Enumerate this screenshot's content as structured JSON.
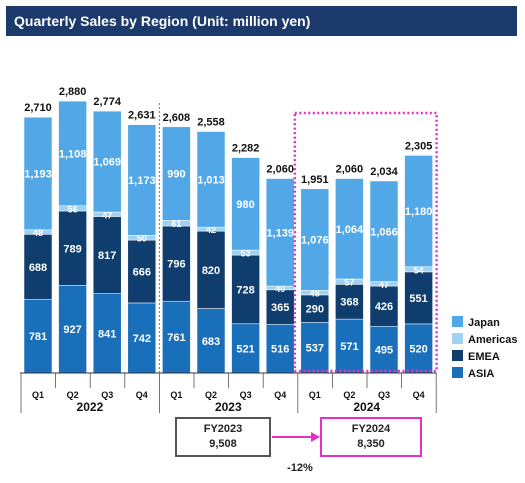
{
  "title": "Quarterly Sales by Region (Unit: million yen)",
  "chart_data": {
    "type": "bar",
    "stacked": true,
    "categories": [
      "Q1",
      "Q2",
      "Q3",
      "Q4",
      "Q1",
      "Q2",
      "Q3",
      "Q4",
      "Q1",
      "Q2",
      "Q3",
      "Q4"
    ],
    "year_groups": [
      {
        "label": "2022",
        "from": 0,
        "to": 3
      },
      {
        "label": "2023",
        "from": 4,
        "to": 7
      },
      {
        "label": "2024",
        "from": 8,
        "to": 11
      }
    ],
    "totals": [
      2710,
      2880,
      2774,
      2631,
      2608,
      2558,
      2282,
      2060,
      1951,
      2060,
      2034,
      2305
    ],
    "total_labels": [
      "2,710",
      "2,880",
      "2,774",
      "2,631",
      "2,608",
      "2,558",
      "2,282",
      "2,060",
      "1,951",
      "2,060",
      "2,034",
      "2,305"
    ],
    "series": [
      {
        "name": "ASIA",
        "color": "#1a6fbb",
        "values": [
          781,
          927,
          841,
          742,
          761,
          683,
          521,
          516,
          537,
          571,
          495,
          520
        ],
        "labels": [
          "781",
          "927",
          "841",
          "742",
          "761",
          "683",
          "521",
          "516",
          "537",
          "571",
          "495",
          "520"
        ]
      },
      {
        "name": "EMEA",
        "color": "#0f3d6e",
        "values": [
          688,
          789,
          817,
          666,
          796,
          820,
          728,
          365,
          290,
          368,
          426,
          551
        ],
        "labels": [
          "688",
          "789",
          "817",
          "666",
          "796",
          "820",
          "728",
          "365",
          "290",
          "368",
          "426",
          "551"
        ]
      },
      {
        "name": "Americas",
        "color": "#9fd2f2",
        "values": [
          48,
          56,
          47,
          50,
          61,
          42,
          53,
          40,
          48,
          57,
          47,
          54
        ],
        "labels": [
          "48",
          "56",
          "47",
          "50",
          "61",
          "42",
          "53",
          "40",
          "48",
          "57",
          "47",
          "54"
        ]
      },
      {
        "name": "Japan",
        "color": "#52a8e6",
        "values": [
          1193,
          1108,
          1069,
          1173,
          990,
          1013,
          980,
          1139,
          1076,
          1064,
          1066,
          1180
        ],
        "labels": [
          "1,193",
          "1,108",
          "1,069",
          "1,173",
          "990",
          "1,013",
          "980",
          "1,139",
          "1,076",
          "1,064",
          "1,066",
          "1,180"
        ]
      }
    ],
    "legend": [
      "Japan",
      "Americas",
      "EMEA",
      "ASIA"
    ],
    "legend_position": "right",
    "ylim": [
      0,
      3000
    ],
    "grid": false
  },
  "comparison": {
    "fy2023_label": "FY2023",
    "fy2023_value": "9,508",
    "fy2024_label": "FY2024",
    "fy2024_value": "8,350",
    "change": "-12%"
  }
}
